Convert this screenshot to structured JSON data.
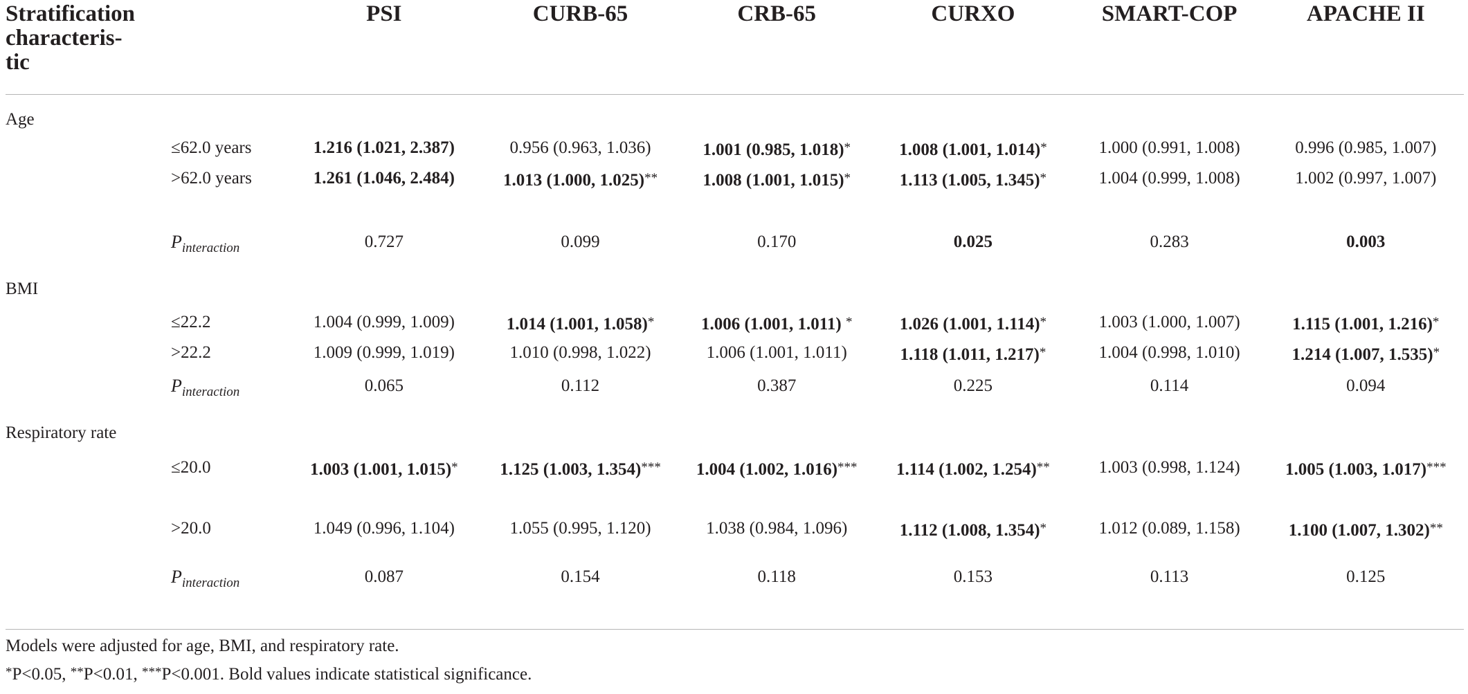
{
  "header": {
    "stratification": "Stratification characteristic",
    "stratification_lines": [
      "Stratification",
      "characteris-",
      "tic"
    ],
    "columns": [
      "PSI",
      "CURB-65",
      "CRB-65",
      "CURXO",
      "SMART-COP",
      "APACHE II"
    ]
  },
  "groups": [
    {
      "name": "Age",
      "rows": [
        {
          "label": "≤62.0 years",
          "cells": [
            {
              "text": "1.216 (1.021, 2.387)",
              "bold": true,
              "star": ""
            },
            {
              "text": "0.956 (0.963, 1.036)",
              "bold": false,
              "star": ""
            },
            {
              "text": "1.001 (0.985, 1.018)",
              "bold": true,
              "star": "*"
            },
            {
              "text": "1.008 (1.001, 1.014)",
              "bold": true,
              "star": "*"
            },
            {
              "text": "1.000 (0.991, 1.008)",
              "bold": false,
              "star": ""
            },
            {
              "text": "0.996 (0.985, 1.007)",
              "bold": false,
              "star": ""
            }
          ]
        },
        {
          "label": ">62.0 years",
          "cells": [
            {
              "text": "1.261 (1.046, 2.484)",
              "bold": true,
              "star": ""
            },
            {
              "text": "1.013 (1.000, 1.025)",
              "bold": true,
              "star": "**"
            },
            {
              "text": "1.008 (1.001, 1.015)",
              "bold": true,
              "star": "*"
            },
            {
              "text": "1.113 (1.005, 1.345)",
              "bold": true,
              "star": "*"
            },
            {
              "text": "1.004 (0.999, 1.008)",
              "bold": false,
              "star": ""
            },
            {
              "text": "1.002 (0.997, 1.007)",
              "bold": false,
              "star": ""
            }
          ]
        }
      ],
      "p_interaction": [
        {
          "text": "0.727",
          "bold": false
        },
        {
          "text": "0.099",
          "bold": false
        },
        {
          "text": "0.170",
          "bold": false
        },
        {
          "text": "0.025",
          "bold": true
        },
        {
          "text": "0.283",
          "bold": false
        },
        {
          "text": "0.003",
          "bold": true
        }
      ]
    },
    {
      "name": "BMI",
      "rows": [
        {
          "label": "≤22.2",
          "cells": [
            {
              "text": "1.004 (0.999, 1.009)",
              "bold": false,
              "star": ""
            },
            {
              "text": "1.014 (1.001, 1.058)",
              "bold": true,
              "star": "*"
            },
            {
              "text": "1.006 (1.001, 1.011) ",
              "bold": true,
              "star": "*"
            },
            {
              "text": "1.026 (1.001, 1.114)",
              "bold": true,
              "star": "*"
            },
            {
              "text": "1.003 (1.000, 1.007)",
              "bold": false,
              "star": ""
            },
            {
              "text": "1.115 (1.001, 1.216)",
              "bold": true,
              "star": "*"
            }
          ]
        },
        {
          "label": ">22.2",
          "cells": [
            {
              "text": "1.009 (0.999, 1.019)",
              "bold": false,
              "star": ""
            },
            {
              "text": "1.010 (0.998, 1.022)",
              "bold": false,
              "star": ""
            },
            {
              "text": "1.006 (1.001, 1.011)",
              "bold": false,
              "star": ""
            },
            {
              "text": "1.118 (1.011, 1.217)",
              "bold": true,
              "star": "*"
            },
            {
              "text": "1.004 (0.998, 1.010)",
              "bold": false,
              "star": ""
            },
            {
              "text": "1.214 (1.007, 1.535)",
              "bold": true,
              "star": "*"
            }
          ]
        }
      ],
      "p_interaction": [
        {
          "text": "0.065",
          "bold": false
        },
        {
          "text": "0.112",
          "bold": false
        },
        {
          "text": "0.387",
          "bold": false
        },
        {
          "text": "0.225",
          "bold": false
        },
        {
          "text": "0.114",
          "bold": false
        },
        {
          "text": "0.094",
          "bold": false
        }
      ]
    },
    {
      "name": "Respiratory rate",
      "rows": [
        {
          "label": "≤20.0",
          "cells": [
            {
              "text": "1.003 (1.001, 1.015)",
              "bold": true,
              "star": "*"
            },
            {
              "text": "1.125 (1.003, 1.354)",
              "bold": true,
              "star": "***"
            },
            {
              "text": "1.004 (1.002, 1.016)",
              "bold": true,
              "star": "***"
            },
            {
              "text": "1.114 (1.002, 1.254)",
              "bold": true,
              "star": "**"
            },
            {
              "text": "1.003 (0.998, 1.124)",
              "bold": false,
              "star": ""
            },
            {
              "text": "1.005 (1.003, 1.017)",
              "bold": true,
              "star": "***"
            }
          ]
        },
        {
          "label": ">20.0",
          "cells": [
            {
              "text": "1.049 (0.996, 1.104)",
              "bold": false,
              "star": ""
            },
            {
              "text": "1.055 (0.995, 1.120)",
              "bold": false,
              "star": ""
            },
            {
              "text": "1.038 (0.984, 1.096)",
              "bold": false,
              "star": ""
            },
            {
              "text": "1.112 (1.008, 1.354)",
              "bold": true,
              "star": "*"
            },
            {
              "text": "1.012 (0.089, 1.158)",
              "bold": false,
              "star": ""
            },
            {
              "text": "1.100 (1.007, 1.302)",
              "bold": true,
              "star": "**"
            }
          ]
        }
      ],
      "p_interaction": [
        {
          "text": "0.087",
          "bold": false
        },
        {
          "text": "0.154",
          "bold": false
        },
        {
          "text": "0.118",
          "bold": false
        },
        {
          "text": "0.153",
          "bold": false
        },
        {
          "text": "0.113",
          "bold": false
        },
        {
          "text": "0.125",
          "bold": false
        }
      ]
    }
  ],
  "p_interaction_label": {
    "p": "P",
    "sub": "interaction"
  },
  "footnotes": {
    "line1": "Models were adjusted for age, BMI, and respiratory rate.",
    "line2_parts": [
      {
        "sup": "*",
        "text": "P<0.05, "
      },
      {
        "sup": "**",
        "text": "P<0.01, "
      },
      {
        "sup": "***",
        "text": "P<0.001. Bold values indicate statistical significance."
      }
    ]
  }
}
